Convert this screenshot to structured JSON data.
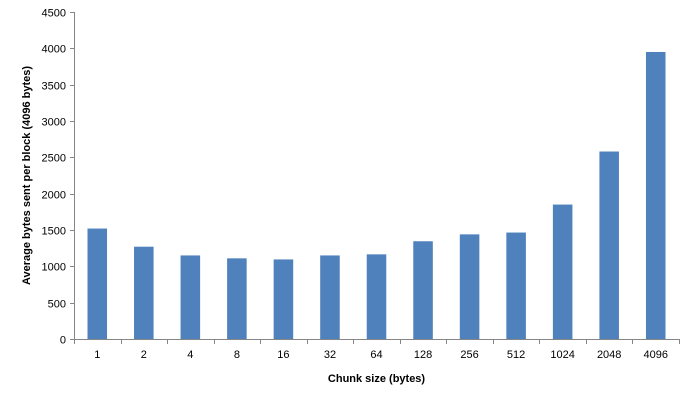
{
  "chart_data": {
    "type": "bar",
    "categories": [
      "1",
      "2",
      "4",
      "8",
      "16",
      "32",
      "64",
      "128",
      "256",
      "512",
      "1024",
      "2048",
      "4096"
    ],
    "values": [
      1520,
      1270,
      1150,
      1110,
      1095,
      1150,
      1165,
      1345,
      1440,
      1465,
      1850,
      2580,
      3950
    ],
    "title": "",
    "xlabel": "Chunk size (bytes)",
    "ylabel": "Average bytes sent per block (4096 bytes)",
    "ylim": [
      0,
      4500
    ],
    "yticks": [
      0,
      500,
      1000,
      1500,
      2000,
      2500,
      3000,
      3500,
      4000,
      4500
    ],
    "grid": false,
    "legend": "none",
    "bar_color": "#4F81BD",
    "axis_color": "#868686"
  }
}
